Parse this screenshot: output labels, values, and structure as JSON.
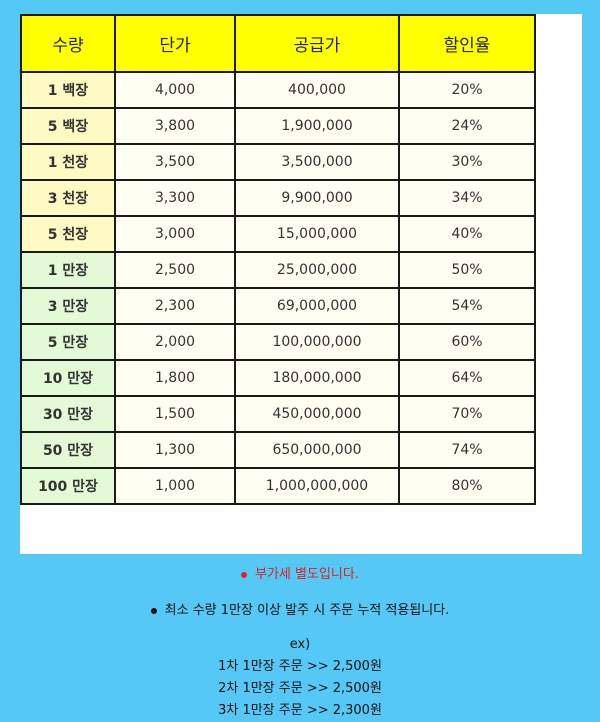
{
  "table": {
    "headers": [
      "수량",
      "단가",
      "공급가",
      "할인율"
    ],
    "rows": [
      {
        "qty": "1 백장",
        "unit": "4,000",
        "supply": "400,000",
        "discount": "20%",
        "tone": "y"
      },
      {
        "qty": "5 백장",
        "unit": "3,800",
        "supply": "1,900,000",
        "discount": "24%",
        "tone": "y"
      },
      {
        "qty": "1 천장",
        "unit": "3,500",
        "supply": "3,500,000",
        "discount": "30%",
        "tone": "y"
      },
      {
        "qty": "3 천장",
        "unit": "3,300",
        "supply": "9,900,000",
        "discount": "34%",
        "tone": "y"
      },
      {
        "qty": "5 천장",
        "unit": "3,000",
        "supply": "15,000,000",
        "discount": "40%",
        "tone": "y"
      },
      {
        "qty": "1 만장",
        "unit": "2,500",
        "supply": "25,000,000",
        "discount": "50%",
        "tone": "g"
      },
      {
        "qty": "3 만장",
        "unit": "2,300",
        "supply": "69,000,000",
        "discount": "54%",
        "tone": "g"
      },
      {
        "qty": "5 만장",
        "unit": "2,000",
        "supply": "100,000,000",
        "discount": "60%",
        "tone": "g"
      },
      {
        "qty": "10 만장",
        "unit": "1,800",
        "supply": "180,000,000",
        "discount": "64%",
        "tone": "g"
      },
      {
        "qty": "30 만장",
        "unit": "1,500",
        "supply": "450,000,000",
        "discount": "70%",
        "tone": "g"
      },
      {
        "qty": "50 만장",
        "unit": "1,300",
        "supply": "650,000,000",
        "discount": "74%",
        "tone": "g"
      },
      {
        "qty": "100 만장",
        "unit": "1,000",
        "supply": "1,000,000,000",
        "discount": "80%",
        "tone": "g"
      }
    ]
  },
  "notes": {
    "vat": "부가세 별도입니다.",
    "min_order": "최소 수량 1만장 이상 발주 시 주문 누적 적용됩니다.",
    "ex_label": "ex)",
    "examples": [
      "1차 1만장 주문 >> 2,500원",
      "2차 1만장 주문 >> 2,500원",
      "3차 1만장 주문 >> 2,300원"
    ]
  },
  "colors": {
    "background": "#56c8f5",
    "header": "#ffff00",
    "vat_note": "#e02020"
  }
}
